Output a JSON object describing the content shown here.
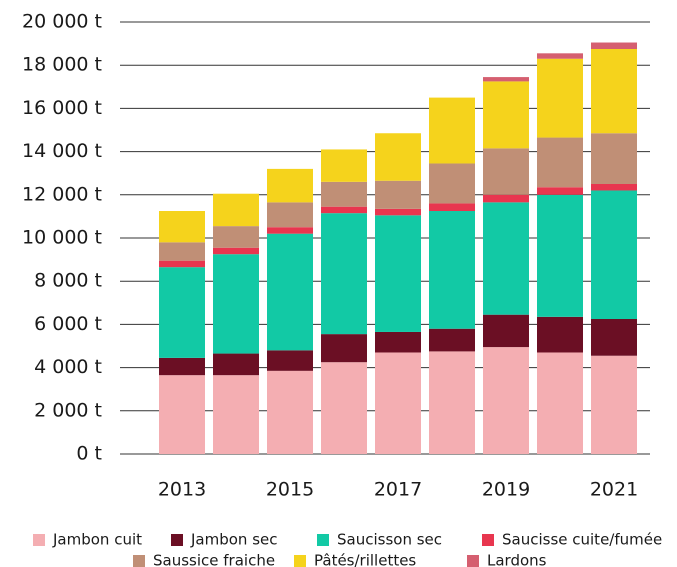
{
  "chart_data": {
    "type": "stacked_bar",
    "categories": [
      "2013",
      null,
      "2015",
      null,
      "2017",
      null,
      "2019",
      null,
      "2021"
    ],
    "ylim": [
      0,
      20000
    ],
    "yticks": [
      {
        "value": 0,
        "label": "0 t"
      },
      {
        "value": 2000,
        "label": "2 000 t"
      },
      {
        "value": 4000,
        "label": "4 000 t"
      },
      {
        "value": 6000,
        "label": "6 000 t"
      },
      {
        "value": 8000,
        "label": "8 000 t"
      },
      {
        "value": 10000,
        "label": "10 000 t"
      },
      {
        "value": 12000,
        "label": "12 000 t"
      },
      {
        "value": 14000,
        "label": "14 000 t"
      },
      {
        "value": 16000,
        "label": "16 000 t"
      },
      {
        "value": 18000,
        "label": "18 000 t"
      },
      {
        "value": 20000,
        "label": "20 000 t"
      }
    ],
    "grid": true,
    "legend": "bottom",
    "series": [
      {
        "name": "Jambon cuit",
        "color": "#f4aeb2",
        "values": [
          3650,
          3650,
          3850,
          4250,
          4700,
          4750,
          4950,
          4700,
          4550
        ]
      },
      {
        "name": "Jambon sec",
        "color": "#6b0f24",
        "values": [
          800,
          1000,
          950,
          1300,
          950,
          1050,
          1500,
          1650,
          1700
        ]
      },
      {
        "name": "Saucisson sec",
        "color": "#12c9a5",
        "values": [
          4200,
          4600,
          5400,
          5600,
          5400,
          5450,
          5200,
          5650,
          5950
        ]
      },
      {
        "name": "Saucisse cuite/fumée",
        "color": "#e8364f",
        "values": [
          300,
          300,
          300,
          300,
          300,
          350,
          350,
          350,
          300
        ]
      },
      {
        "name": "Saussice fraiche",
        "color": "#c08f76",
        "values": [
          850,
          1000,
          1150,
          1150,
          1300,
          1850,
          2150,
          2300,
          2350
        ]
      },
      {
        "name": "Pâtés/rillettes",
        "color": "#f5d31c",
        "values": [
          1450,
          1500,
          1550,
          1500,
          2200,
          3050,
          3100,
          3650,
          3900
        ]
      },
      {
        "name": "Lardons",
        "color": "#d55f70",
        "values": [
          0,
          0,
          0,
          0,
          0,
          0,
          200,
          250,
          300
        ]
      }
    ]
  }
}
